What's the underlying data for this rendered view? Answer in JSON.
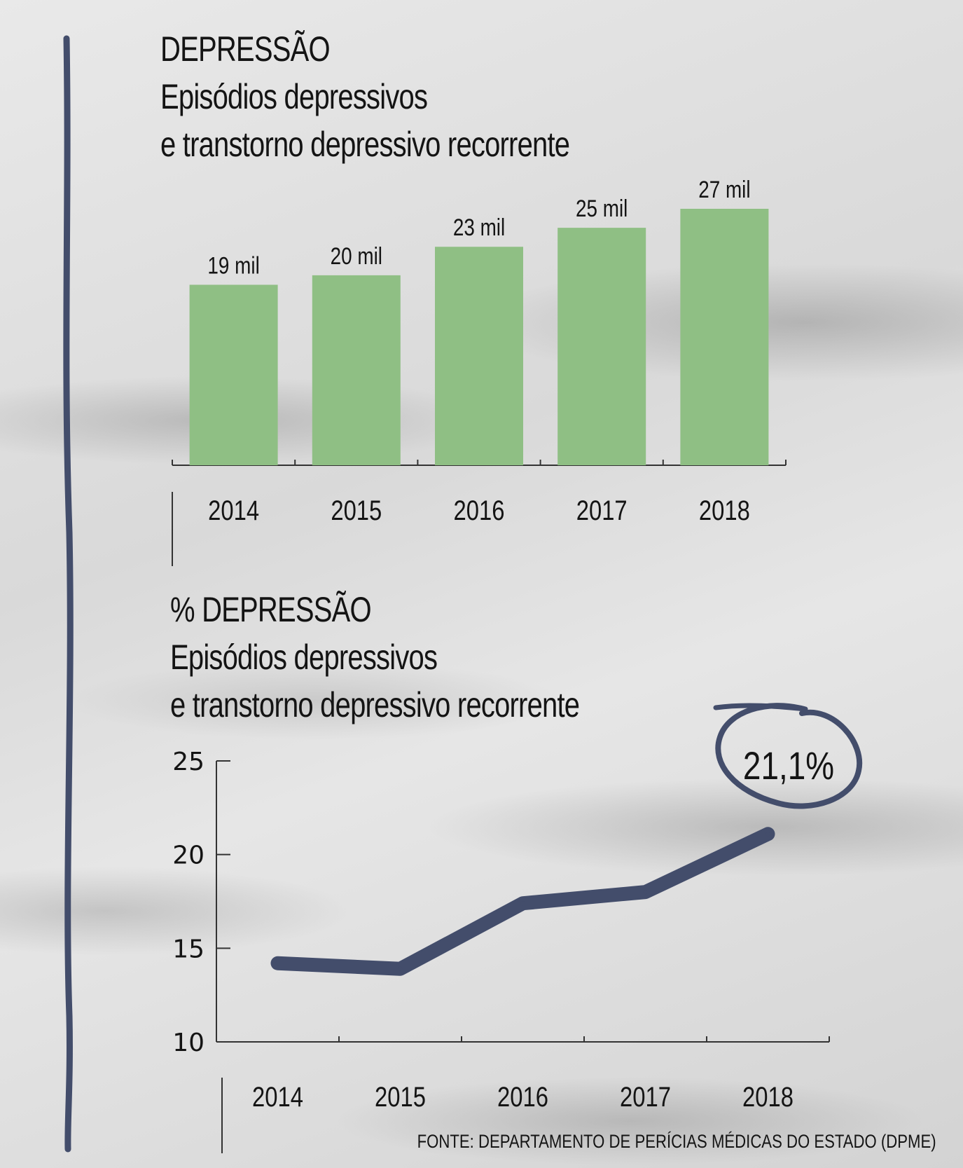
{
  "bar_section": {
    "title_line1": "DEPRESSÃO",
    "title_line2": "Episódios depressivos",
    "title_line3": "e transtorno depressivo recorrente"
  },
  "line_section": {
    "title_line1": "% DEPRESSÃO",
    "title_line2": "Episódios depressivos",
    "title_line3": "e transtorno depressivo recorrente",
    "highlight": "21,1%"
  },
  "source": "FONTE: DEPARTAMENTO DE PERÍCIAS MÉDICAS DO ESTADO (DPME)",
  "colors": {
    "bar": "#8fbf84",
    "line": "#434d6b",
    "text": "#141414",
    "accent_line": "#434d6b"
  },
  "chart_data": [
    {
      "type": "bar",
      "title": "DEPRESSÃO",
      "subtitle": "Episódios depressivos e transtorno depressivo recorrente",
      "categories": [
        "2014",
        "2015",
        "2016",
        "2017",
        "2018"
      ],
      "values": [
        19000,
        20000,
        23000,
        25000,
        27000
      ],
      "data_labels": [
        "19 mil",
        "20 mil",
        "23 mil",
        "25 mil",
        "27 mil"
      ],
      "xlabel": "",
      "ylabel": "",
      "ylim": [
        0,
        27000
      ],
      "grid": false
    },
    {
      "type": "line",
      "title": "% DEPRESSÃO",
      "subtitle": "Episódios depressivos e transtorno depressivo recorrente",
      "categories": [
        "2014",
        "2015",
        "2016",
        "2017",
        "2018"
      ],
      "values": [
        14.2,
        13.9,
        17.4,
        18.0,
        21.1
      ],
      "yticks": [
        "10",
        "15",
        "20",
        "25"
      ],
      "ylim": [
        10,
        25
      ],
      "xlabel": "",
      "ylabel": "",
      "annotation": "21,1%",
      "grid": false
    }
  ]
}
